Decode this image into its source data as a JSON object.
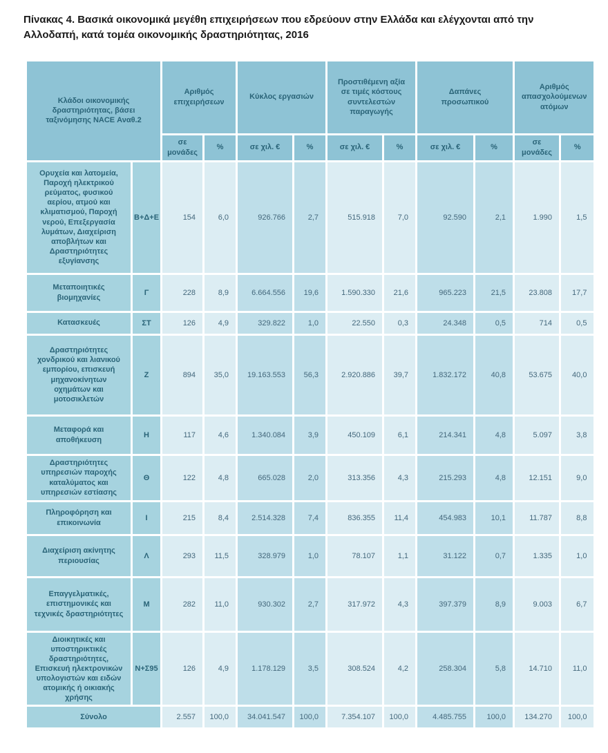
{
  "title": "Πίνακας 4. Βασικά οικονομικά μεγέθη επιχειρήσεων  που εδρεύουν στην Ελλάδα και ελέγχονται από την Αλλοδαπή,  κατά τομέα οικονομικής δραστηριότητας,  2016",
  "colors": {
    "header_bg": "#8ec3d5",
    "stub_bg": "#a6d3df",
    "cell_light": "#dcedf3",
    "cell_dark": "#bedee9",
    "header_text": "#2a6478",
    "value_text": "#44687c",
    "title_text": "#1a1a1a",
    "grid_gap": "#ffffff"
  },
  "table": {
    "stub_header": "Κλάδοι οικονομικής δραστηριότητας, βάσει ταξινόμησης NACE Αναθ.2",
    "groups": [
      {
        "label": "Αριθμός επιχειρήσεων"
      },
      {
        "label": "Κύκλος εργασιών"
      },
      {
        "label": "Προστιθέμενη αξία σε τιμές κόστους συντελεστών παραγωγής"
      },
      {
        "label": "Δαπάνες προσωπικού"
      },
      {
        "label": "Αριθμός απασχολούμενων ατόμων"
      }
    ],
    "units": [
      "σε μονάδες",
      "%",
      "σε χιλ. €",
      "%",
      "σε χιλ. €",
      "%",
      "σε χιλ. €",
      "%",
      "σε μονάδες",
      "%"
    ],
    "rows": [
      {
        "sector": "Ορυχεία και λατομεία, Παροχή ηλεκτρικού ρεύματος, φυσικού αερίου, ατμού και κλιματισμού, Παροχή νερού, Επεξεργασία λυμάτων, Διαχείριση αποβλήτων και Δραστηριότητες εξυγίανσης",
        "code": "Β+Δ+Ε",
        "values": [
          "154",
          "6,0",
          "926.766",
          "2,7",
          "515.918",
          "7,0",
          "92.590",
          "2,1",
          "1.990",
          "1,5"
        ]
      },
      {
        "sector": "Μεταποιητικές βιομηχανίες",
        "code": "Γ",
        "values": [
          "228",
          "8,9",
          "6.664.556",
          "19,6",
          "1.590.330",
          "21,6",
          "965.223",
          "21,5",
          "23.808",
          "17,7"
        ]
      },
      {
        "sector": "Κατασκευές",
        "code": "ΣΤ",
        "values": [
          "126",
          "4,9",
          "329.822",
          "1,0",
          "22.550",
          "0,3",
          "24.348",
          "0,5",
          "714",
          "0,5"
        ]
      },
      {
        "sector": "Δραστηριότητες χονδρικού και λιανικού εμπορίου, επισκευή μηχανοκίνητων οχημάτων και μοτοσικλετών",
        "code": "Ζ",
        "values": [
          "894",
          "35,0",
          "19.163.553",
          "56,3",
          "2.920.886",
          "39,7",
          "1.832.172",
          "40,8",
          "53.675",
          "40,0"
        ]
      },
      {
        "sector": "Μεταφορά και αποθήκευση",
        "code": "Η",
        "values": [
          "117",
          "4,6",
          "1.340.084",
          "3,9",
          "450.109",
          "6,1",
          "214.341",
          "4,8",
          "5.097",
          "3,8"
        ]
      },
      {
        "sector": "Δραστηριότητες υπηρεσιών παροχής καταλύματος και υπηρεσιών εστίασης",
        "code": "Θ",
        "values": [
          "122",
          "4,8",
          "665.028",
          "2,0",
          "313.356",
          "4,3",
          "215.293",
          "4,8",
          "12.151",
          "9,0"
        ]
      },
      {
        "sector": "Πληροφόρηση και επικοινωνία",
        "code": "Ι",
        "values": [
          "215",
          "8,4",
          "2.514.328",
          "7,4",
          "836.355",
          "11,4",
          "454.983",
          "10,1",
          "11.787",
          "8,8"
        ]
      },
      {
        "sector": "Διαχείριση ακίνητης περιουσίας",
        "code": "Λ",
        "values": [
          "293",
          "11,5",
          "328.979",
          "1,0",
          "78.107",
          "1,1",
          "31.122",
          "0,7",
          "1.335",
          "1,0"
        ]
      },
      {
        "sector": "Επαγγελματικές, επιστημονικές και τεχνικές δραστηριότητες",
        "code": "Μ",
        "values": [
          "282",
          "11,0",
          "930.302",
          "2,7",
          "317.972",
          "4,3",
          "397.379",
          "8,9",
          "9.003",
          "6,7"
        ]
      },
      {
        "sector": "Διοικητικές και υποστηρικτικές δραστηριότητες, Επισκευή ηλεκτρονικών υπολογιστών και ειδών ατομικής ή οικιακής χρήσης",
        "code": "Ν+Σ95",
        "values": [
          "126",
          "4,9",
          "1.178.129",
          "3,5",
          "308.524",
          "4,2",
          "258.304",
          "5,8",
          "14.710",
          "11,0"
        ]
      }
    ],
    "total": {
      "label": "Σύνολο",
      "values": [
        "2.557",
        "100,0",
        "34.041.547",
        "100,0",
        "7.354.107",
        "100,0",
        "4.485.755",
        "100,0",
        "134.270",
        "100,0"
      ]
    }
  }
}
